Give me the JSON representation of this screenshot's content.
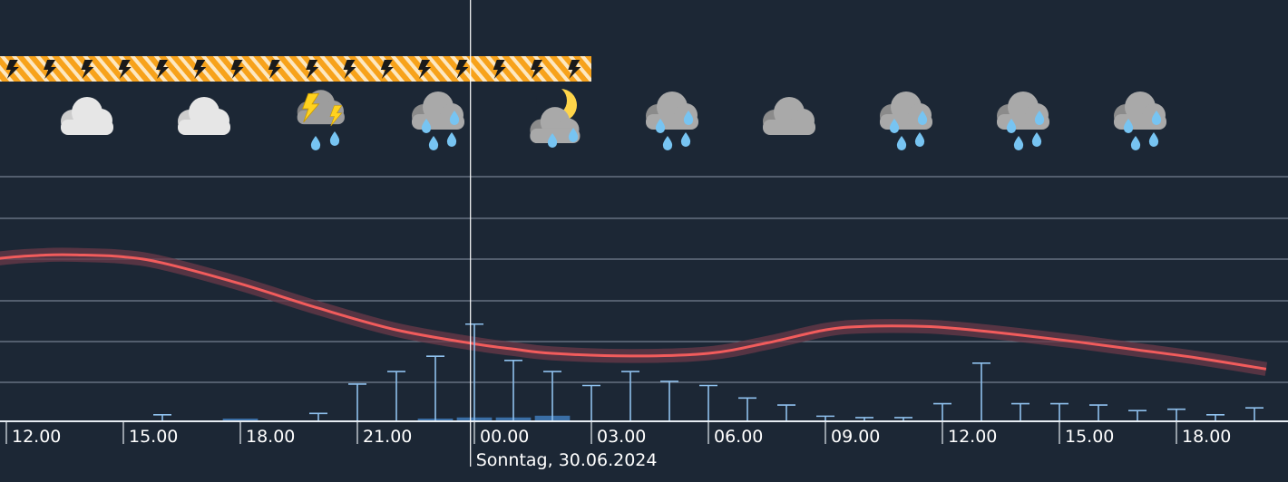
{
  "chart_data": {
    "type": "line",
    "title": "",
    "xlabel": "",
    "ylabel": "",
    "x_unit": "hours relative to midnight 30.06.2024",
    "x_range": [
      -14.5,
      20.3
    ],
    "grid": true,
    "x_ticks": [
      {
        "t": -12,
        "label": "12.00"
      },
      {
        "t": -9,
        "label": "15.00"
      },
      {
        "t": -6,
        "label": "18.00"
      },
      {
        "t": -3,
        "label": "21.00"
      },
      {
        "t": 0,
        "label": "00.00"
      },
      {
        "t": 3,
        "label": "03.00"
      },
      {
        "t": 6,
        "label": "06.00"
      },
      {
        "t": 9,
        "label": "09.00"
      },
      {
        "t": 12,
        "label": "12.00"
      },
      {
        "t": 15,
        "label": "15.00"
      },
      {
        "t": 18,
        "label": "18.00"
      }
    ],
    "current_time": -0.1,
    "date_label": "Sonntag, 30.06.2024",
    "thunderstorm_warning": {
      "start": -13.5,
      "end": 3.0
    },
    "weather_icons": [
      {
        "t": -13.0,
        "icon": "sun-cloud-icon"
      },
      {
        "t": -10.0,
        "icon": "cloud-icon"
      },
      {
        "t": -7.0,
        "icon": "cloud-icon"
      },
      {
        "t": -4.0,
        "icon": "thunderstorm-rain-icon"
      },
      {
        "t": -1.0,
        "icon": "rain-cloud-icon"
      },
      {
        "t": 2.0,
        "icon": "moon-cloud-rain-icon"
      },
      {
        "t": 5.0,
        "icon": "rain-cloud-icon"
      },
      {
        "t": 8.0,
        "icon": "cloud-icon"
      },
      {
        "t": 11.0,
        "icon": "rain-cloud-icon"
      },
      {
        "t": 14.0,
        "icon": "rain-cloud-icon"
      },
      {
        "t": 17.0,
        "icon": "rain-cloud-icon"
      }
    ],
    "series": [
      {
        "name": "",
        "kind": "temperature",
        "x": [
          -14.5,
          -12.5,
          -11.0,
          -10.0,
          -9.0,
          -8.0,
          -6.0,
          -4.0,
          -2.0,
          0.0,
          1.0,
          2.0,
          4.0,
          6.0,
          7.5,
          9.0,
          10.0,
          11.5,
          12.5,
          14.0,
          15.5,
          17.0,
          18.5,
          20.3
        ],
        "values": [
          16.2,
          18.3,
          18.9,
          18.9,
          18.7,
          18.0,
          15.6,
          12.8,
          10.3,
          8.7,
          8.1,
          7.6,
          7.3,
          7.6,
          8.8,
          10.3,
          10.7,
          10.7,
          10.4,
          9.7,
          8.9,
          8.0,
          7.1,
          5.8
        ],
        "band": 0.8,
        "color": "#f25c5c"
      },
      {
        "name": "",
        "kind": "precipitation",
        "bar_width": 0.9,
        "x": [
          -13.0,
          -12.0,
          -11.0,
          -10.0,
          -9.0,
          -8.0,
          -7.0,
          -6.0,
          -5.0,
          -4.0,
          -3.0,
          -2.0,
          -1.0,
          0.0,
          1.0,
          2.0,
          3.0,
          4.0,
          5.0,
          6.0,
          7.0,
          8.0,
          9.0,
          10.0,
          11.0,
          12.0,
          13.0,
          14.0,
          15.0,
          16.0,
          17.0,
          18.0,
          19.0,
          20.0
        ],
        "values": [
          0,
          0,
          0,
          0,
          0,
          0,
          0,
          0.02,
          0,
          0,
          0,
          0,
          0.03,
          0.05,
          0.05,
          0.08,
          0,
          0,
          0,
          0,
          0,
          0,
          0,
          0,
          0,
          0,
          0,
          0,
          0,
          0,
          0,
          0,
          0,
          0
        ],
        "probability": [
          0,
          0,
          0,
          0,
          0,
          0.4,
          0,
          0,
          0,
          0.5,
          2.6,
          3.5,
          4.6,
          6.9,
          4.3,
          3.5,
          2.5,
          3.5,
          2.8,
          2.5,
          1.6,
          1.1,
          0.3,
          0.2,
          0.2,
          1.2,
          4.1,
          1.2,
          1.2,
          1.1,
          0.7,
          0.8,
          0.4,
          0.9
        ],
        "color": "#3a6ea5",
        "whisker_color": "#8fc1ee"
      }
    ]
  }
}
